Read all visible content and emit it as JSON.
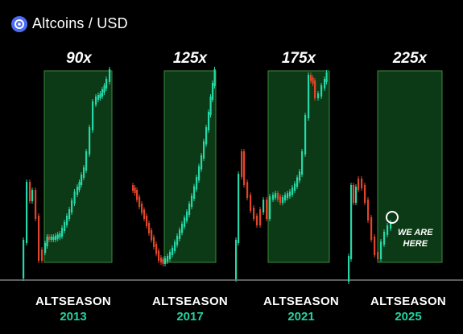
{
  "header": {
    "title": "Altcoins / USD",
    "icon": "altcoin-logo-icon"
  },
  "colors": {
    "up": "#26d7a7",
    "down": "#e0452a",
    "zone_fill": "#0d3a16",
    "zone_stroke": "#3c8a3c",
    "year": "#22d3a0"
  },
  "chart_data": {
    "type": "candlestick",
    "title": "Altcoins / USD",
    "cycles": [
      {
        "season": "ALTSEASON",
        "year": "2013",
        "multiplier": "90x"
      },
      {
        "season": "ALTSEASON",
        "year": "2017",
        "multiplier": "125x"
      },
      {
        "season": "ALTSEASON",
        "year": "2021",
        "multiplier": "175x"
      },
      {
        "season": "ALTSEASON",
        "year": "2025",
        "multiplier": "225x"
      }
    ],
    "annotation": {
      "line1": "WE ARE",
      "line2": "HERE"
    }
  }
}
